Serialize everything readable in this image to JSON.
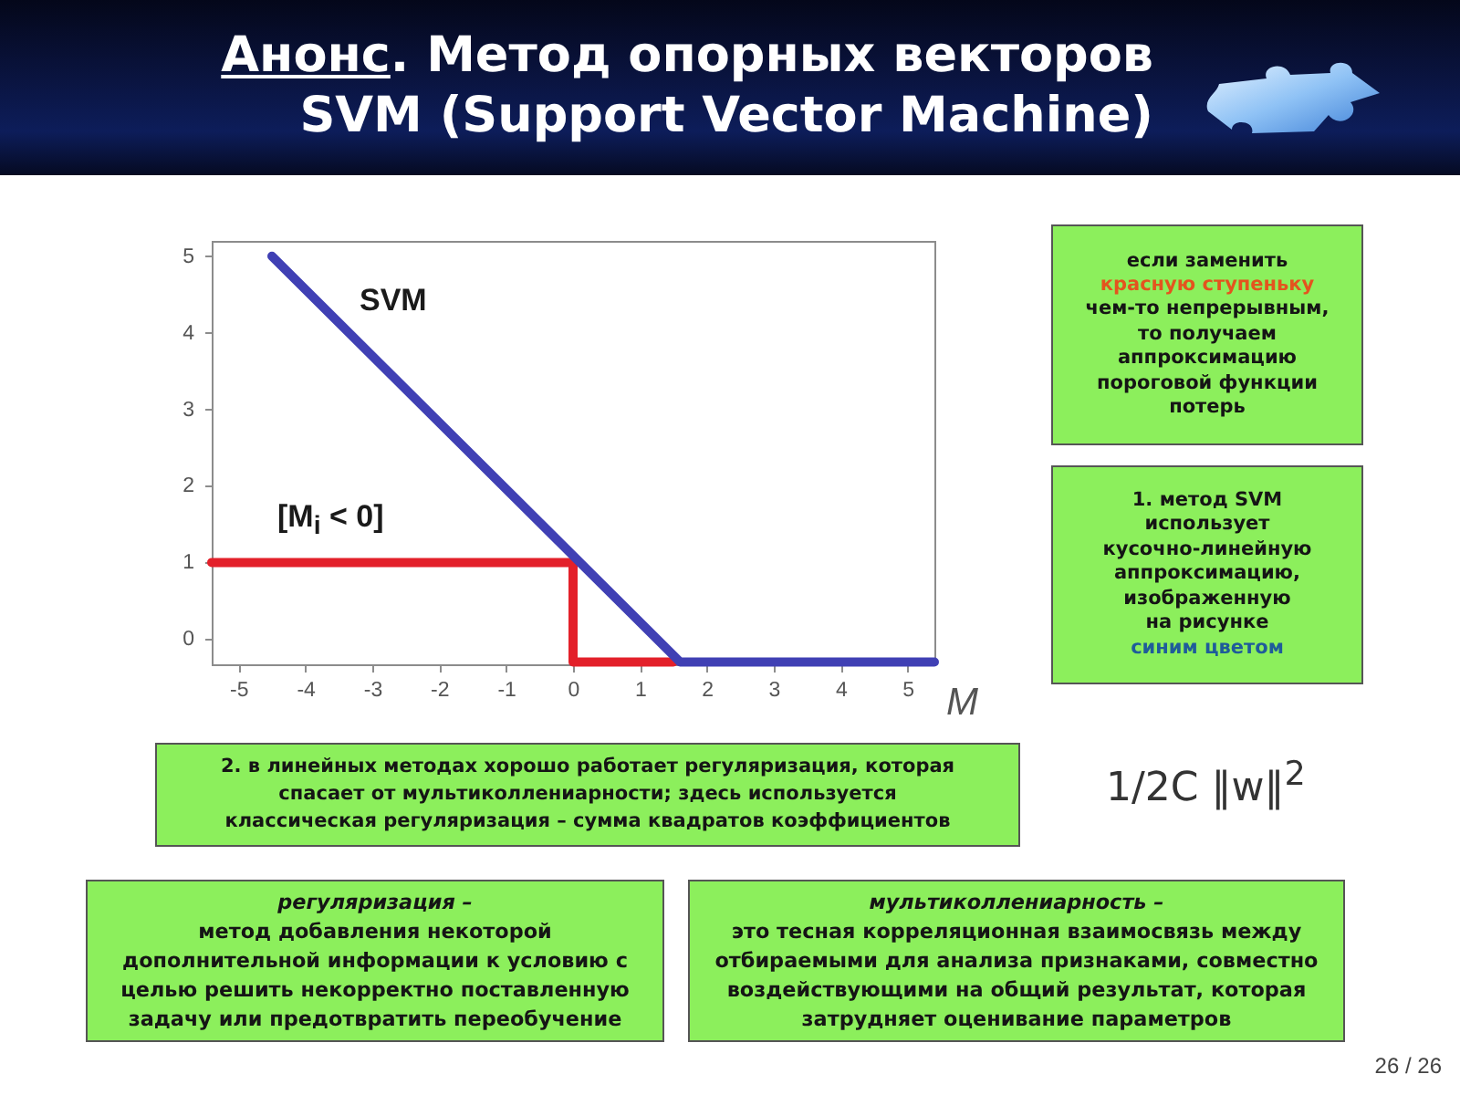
{
  "chart_data": {
    "type": "line",
    "title": "Анонс. Метод опорных векторов\nSVM (Support Vector Machine)",
    "xlabel": "M",
    "series": [
      {
        "name": "[M$_{i}$ < 0]",
        "color": "#e3202a",
        "x": [
          -5.4,
          0,
          0,
          1.5
        ],
        "values": [
          1,
          1,
          -0.3,
          -0.3
        ]
      },
      {
        "name": "SVM",
        "color": "#4040b4",
        "x": [
          -4.5,
          1.6,
          5.4
        ],
        "values": [
          5,
          -0.3,
          -0.3
        ]
      }
    ],
    "xlim": [
      -5.4,
      5.4
    ],
    "xticks": [
      -5,
      -4,
      -3,
      -2,
      -1,
      0,
      1,
      2,
      3,
      4,
      5
    ],
    "ylim": [
      -0.33,
      5.2
    ],
    "yticks": [
      0,
      1,
      2,
      3,
      4,
      5
    ],
    "line_style": "solid",
    "annotations": [
      "если заменить\nкрасную ступеньку\nчем-то непрерывным,\nто получаем\nаппроксимацию\nпороговой функции\nпотерь",
      "1. метод SVM\nиспользует\nкусочно-линейную\nаппроксимацию,\nизображенную\nна рисунке\nсиним цветом",
      "2. в линейных методах хорошо работает регуляризация, которая\nспасает от мультиколлениарности; здесь используется\nклассическая регуляризация – сумма квадратов коэффициентов",
      "1/2C ‖w‖$^{2}$",
      "регуляризация –\nметод добавления некоторой\nдополнительной информации к условию с\nцелью решить некорректно поставленную\nзадачу или предотвратить переобучение",
      "мультиколлениарность –\nэто тесная корреляционная взаимосвязь между\nотбираемыми для анализа признаками, совместно\nвоздействующими на общий результат, которая\nзатрудняет оценивание параметров",
      "26 / 26"
    ]
  }
}
